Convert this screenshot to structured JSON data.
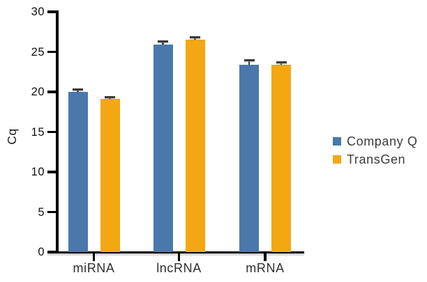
{
  "chart_data": {
    "type": "bar",
    "title": "",
    "xlabel": "",
    "ylabel": "Cq",
    "categories": [
      "miRNA",
      "lncRNA",
      "mRNA"
    ],
    "series": [
      {
        "name": "Company Q",
        "color": "#4a78ab",
        "values": [
          20.0,
          25.9,
          23.4
        ],
        "errors": [
          0.2,
          0.3,
          0.45
        ]
      },
      {
        "name": "TransGen",
        "color": "#f3a712",
        "values": [
          19.1,
          26.5,
          23.4
        ],
        "errors": [
          0.15,
          0.25,
          0.2
        ]
      }
    ],
    "ylim": [
      0,
      30
    ],
    "yticks": [
      0,
      5,
      10,
      15,
      20,
      25,
      30
    ],
    "grid": false,
    "legend_position": "right",
    "error_bars": "upper caps",
    "axis_color": "#000000",
    "error_bar_color": "#3a3a3a"
  }
}
